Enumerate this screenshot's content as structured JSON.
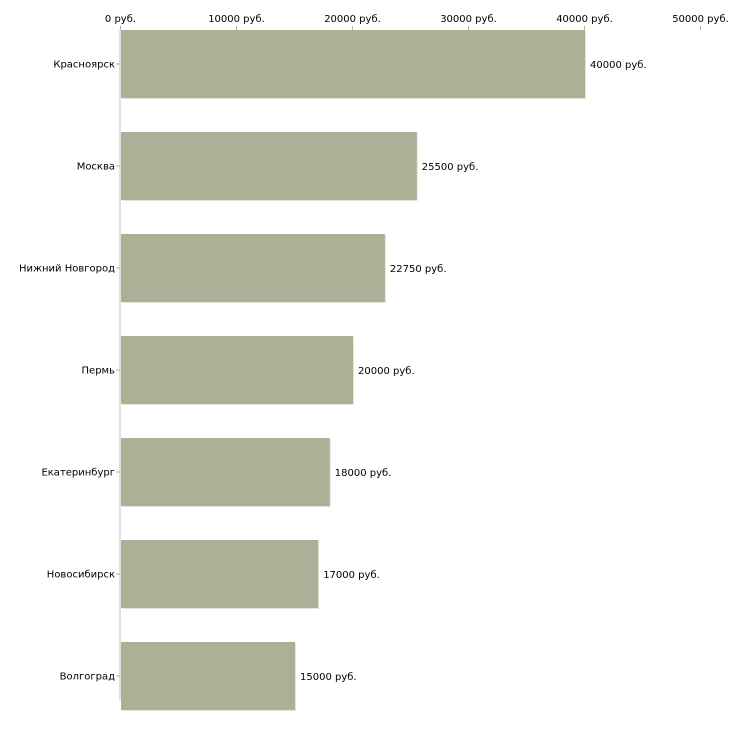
{
  "chart_data": {
    "type": "bar",
    "orientation": "horizontal",
    "title": "",
    "xlabel": "",
    "ylabel": "",
    "categories": [
      "Красноярск",
      "Москва",
      "Нижний Новгород",
      "Пермь",
      "Екатеринбург",
      "Новосибирск",
      "Волгоград"
    ],
    "values": [
      40000,
      25500,
      22750,
      20000,
      18000,
      17000,
      15000
    ],
    "value_labels": [
      "40000 руб.",
      "25500 руб.",
      "22750 руб.",
      "20000 руб.",
      "18000 руб.",
      "17000 руб.",
      "15000 руб."
    ],
    "xlim": [
      0,
      50000
    ],
    "x_ticks": [
      0,
      10000,
      20000,
      30000,
      40000,
      50000
    ],
    "x_tick_labels": [
      "0 руб.",
      "10000 руб.",
      "20000 руб.",
      "30000 руб.",
      "40000 руб.",
      "50000 руб."
    ],
    "axis_position": "top",
    "grid": false,
    "colors": {
      "bar": "#abb197",
      "axis": "#c0c0c0",
      "tick": "#b5b48a"
    }
  }
}
